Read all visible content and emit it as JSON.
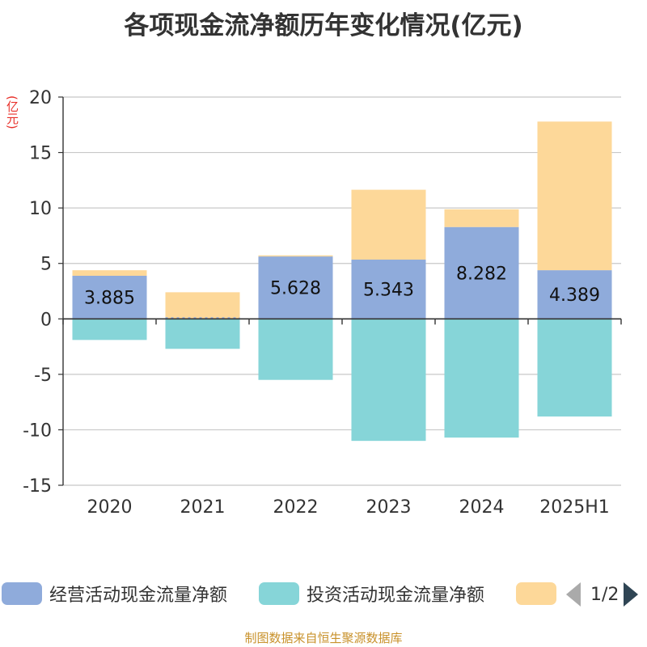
{
  "title": "各项现金流净额历年变化情况(亿元)",
  "unit_label": "(亿元)",
  "source": "制图数据来自恒生聚源数据库",
  "legend": {
    "items": [
      {
        "label": "经营活动现金流量净额",
        "color": "#8fabdb"
      },
      {
        "label": "投资活动现金流量净额",
        "color": "#86d5d8"
      },
      {
        "label": "",
        "color": "#fdd899"
      }
    ],
    "page": "1/2"
  },
  "chart_data": {
    "type": "bar",
    "stacked": true,
    "categories": [
      "2020",
      "2021",
      "2022",
      "2023",
      "2024",
      "2025H1"
    ],
    "ylim": [
      -15,
      20
    ],
    "yticks": [
      20,
      15,
      10,
      5,
      0,
      -5,
      -10,
      -15
    ],
    "grid": true,
    "legend_position": "bottom",
    "series": [
      {
        "name": "经营活动现金流量净额",
        "color": "#8fabdb",
        "values": [
          3.885,
          0.0,
          5.628,
          5.343,
          8.282,
          4.389
        ],
        "labels": [
          "3.885",
          "",
          "5.628",
          "5.343",
          "8.282",
          "4.389"
        ]
      },
      {
        "name": "投资活动现金流量净额",
        "color": "#86d5d8",
        "values": [
          -1.9,
          -2.7,
          -5.5,
          -11.0,
          -10.7,
          -8.8
        ]
      },
      {
        "name": "",
        "color": "#fdd899",
        "values": [
          0.5,
          2.4,
          0.1,
          6.3,
          1.6,
          13.4
        ]
      }
    ]
  }
}
